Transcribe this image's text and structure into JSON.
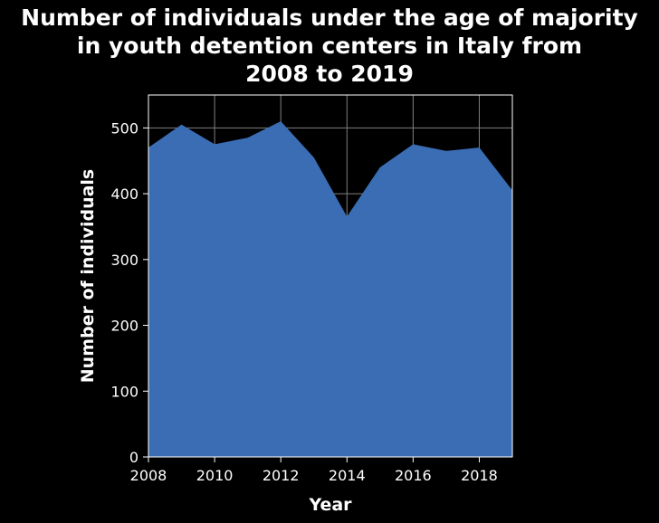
{
  "chart_data": {
    "type": "area",
    "title_lines": [
      "Number of individuals under the age of majority",
      "in youth detention centers in Italy from",
      "2008 to 2019"
    ],
    "xlabel": "Year",
    "ylabel": "Number of individuals",
    "x": [
      2008,
      2009,
      2010,
      2011,
      2012,
      2013,
      2014,
      2015,
      2016,
      2017,
      2018,
      2019
    ],
    "values": [
      470,
      505,
      475,
      485,
      510,
      455,
      365,
      440,
      475,
      465,
      470,
      405
    ],
    "xlim": [
      2008,
      2019
    ],
    "ylim": [
      0,
      550
    ],
    "x_ticks": [
      2008,
      2010,
      2012,
      2014,
      2016,
      2018
    ],
    "x_tick_labels": [
      "2008",
      "2010",
      "2012",
      "2014",
      "2016",
      "2018"
    ],
    "y_ticks": [
      0,
      100,
      200,
      300,
      400,
      500
    ],
    "y_tick_labels": [
      "0",
      "100",
      "200",
      "300",
      "400",
      "500"
    ],
    "grid": true,
    "legend": "none",
    "colors": {
      "background": "#000000",
      "fill": "#3a6db3",
      "grid": "#808080",
      "text": "#ffffff"
    }
  }
}
